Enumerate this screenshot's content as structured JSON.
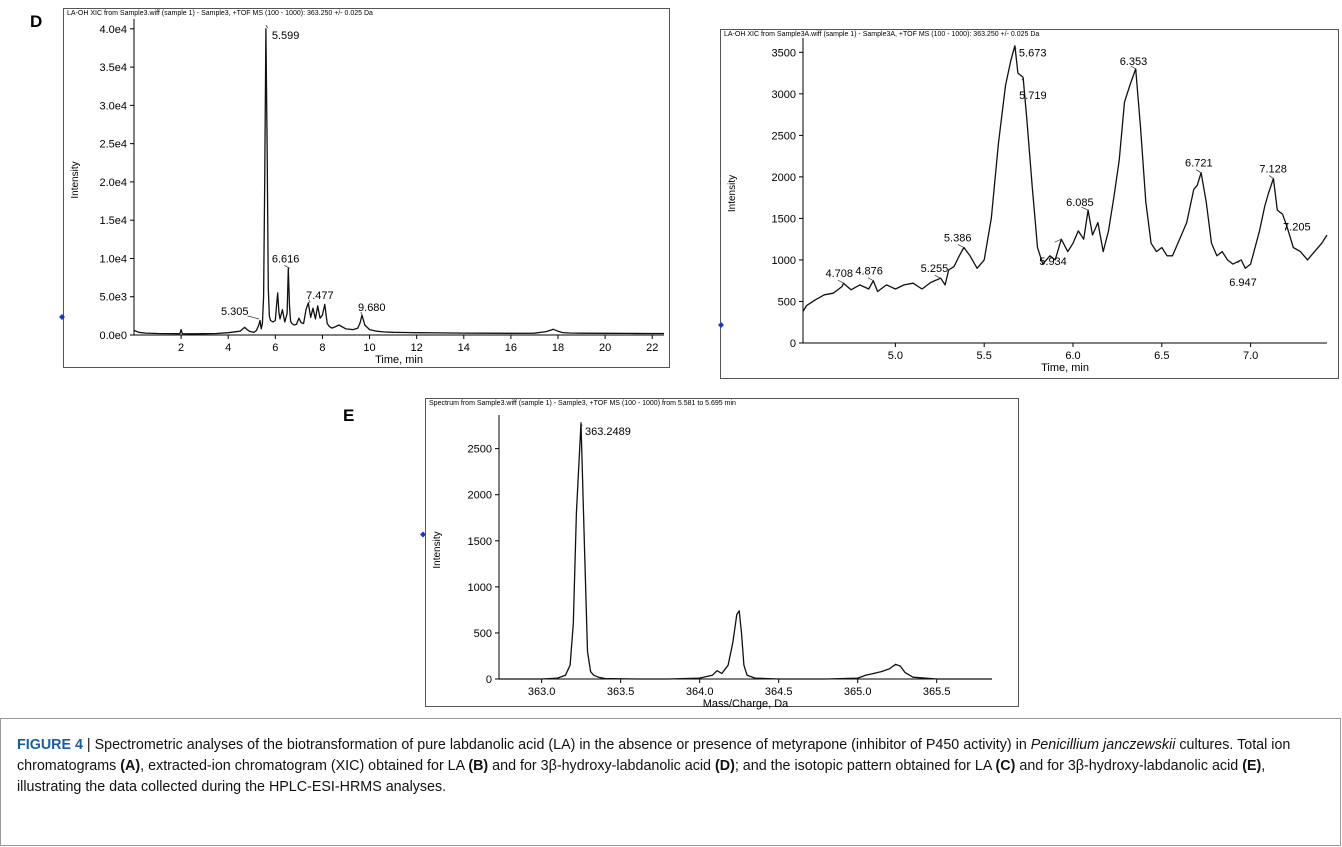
{
  "panel_labels": {
    "D": "D",
    "E": "E"
  },
  "chart_data": [
    {
      "id": "D-left",
      "type": "line",
      "header": "LA-OH XIC from Sample3.wiff (sample 1) - Sample3, +TOF MS (100 - 1000): 363.250 +/- 0.025 Da",
      "xlabel": "Time, min",
      "ylabel": "Intensity",
      "xlim": [
        0,
        22.5
      ],
      "ylim": [
        0,
        40500
      ],
      "xticks": [
        2,
        4,
        6,
        8,
        10,
        12,
        14,
        16,
        18,
        20,
        22
      ],
      "xtick_labels": [
        "2",
        "4",
        "6",
        "8",
        "10",
        "12",
        "14",
        "16",
        "18",
        "20",
        "22"
      ],
      "yticks": [
        0,
        5000,
        10000,
        15000,
        20000,
        25000,
        30000,
        35000,
        40000
      ],
      "ytick_labels": [
        "0.0e0",
        "5.0e3",
        "1.0e4",
        "1.5e4",
        "2.0e4",
        "2.5e4",
        "3.0e4",
        "3.5e4",
        "4.0e4"
      ],
      "annotations": [
        {
          "label": "5.599",
          "x": 5.599,
          "y": 40500
        },
        {
          "label": "6.616",
          "x": 6.616,
          "y": 8700
        },
        {
          "label": "5.305",
          "x": 5.305,
          "y": 2100
        },
        {
          "label": "7.477",
          "x": 7.477,
          "y": 4200
        },
        {
          "label": "9.680",
          "x": 9.68,
          "y": 2600
        }
      ],
      "series": [
        {
          "x": [
            0,
            0.2,
            0.5,
            1,
            1.5,
            1.95,
            2.0,
            2.05,
            2.5,
            3,
            3.5,
            4,
            4.5,
            4.7,
            4.8,
            4.9,
            5.0,
            5.1,
            5.2,
            5.3,
            5.35,
            5.4,
            5.45,
            5.5,
            5.55,
            5.6,
            5.65,
            5.7,
            5.75,
            5.8,
            5.9,
            6.0,
            6.05,
            6.1,
            6.15,
            6.2,
            6.3,
            6.4,
            6.5,
            6.55,
            6.6,
            6.65,
            6.7,
            6.8,
            6.9,
            7.0,
            7.1,
            7.2,
            7.3,
            7.4,
            7.5,
            7.6,
            7.7,
            7.8,
            7.9,
            8.0,
            8.1,
            8.2,
            8.3,
            8.4,
            8.5,
            8.7,
            9.0,
            9.3,
            9.5,
            9.6,
            9.68,
            9.8,
            10.0,
            10.3,
            10.6,
            11,
            11.5,
            12,
            13,
            14,
            15,
            16,
            17,
            17.5,
            17.8,
            18,
            18.2,
            18.5,
            19,
            20,
            21,
            22,
            22.5
          ],
          "y": [
            600,
            350,
            250,
            200,
            180,
            170,
            700,
            170,
            160,
            170,
            200,
            300,
            500,
            1000,
            700,
            500,
            400,
            350,
            600,
            1300,
            1900,
            800,
            1500,
            5000,
            20000,
            40000,
            25000,
            6000,
            2400,
            1900,
            1700,
            1900,
            3800,
            5500,
            3000,
            2100,
            3300,
            1700,
            2800,
            8700,
            3800,
            1800,
            1500,
            1300,
            1400,
            2200,
            1600,
            1500,
            3300,
            4200,
            2300,
            3500,
            2100,
            3800,
            2200,
            2600,
            4000,
            1500,
            1100,
            900,
            1000,
            1300,
            800,
            700,
            900,
            1600,
            2600,
            1300,
            700,
            500,
            400,
            350,
            330,
            300,
            270,
            250,
            230,
            220,
            230,
            450,
            750,
            500,
            320,
            260,
            230,
            220,
            210,
            200,
            200
          ]
        }
      ]
    },
    {
      "id": "D-right",
      "type": "line",
      "header": "LA-OH XIC from Sample3A.wiff (sample 1) - Sample3A, +TOF MS (100 - 1000): 363.250 +/- 0.025 Da",
      "xlabel": "Time, min",
      "ylabel": "Intensity",
      "xlim": [
        4.48,
        7.43
      ],
      "ylim": [
        0,
        3600
      ],
      "xticks": [
        5.0,
        5.5,
        6.0,
        6.5,
        7.0
      ],
      "xtick_labels": [
        "5.0",
        "5.5",
        "6.0",
        "6.5",
        "7.0"
      ],
      "yticks": [
        0,
        500,
        1000,
        1500,
        2000,
        2500,
        3000,
        3500
      ],
      "ytick_labels": [
        "0",
        "500",
        "1000",
        "1500",
        "2000",
        "2500",
        "3000",
        "3500"
      ],
      "annotations": [
        {
          "label": "5.673",
          "x": 5.673,
          "y": 3580
        },
        {
          "label": "5.719",
          "x": 5.719,
          "y": 3200
        },
        {
          "label": "6.353",
          "x": 6.353,
          "y": 3300
        },
        {
          "label": "4.708",
          "x": 4.708,
          "y": 720
        },
        {
          "label": "4.876",
          "x": 4.876,
          "y": 750
        },
        {
          "label": "5.255",
          "x": 5.255,
          "y": 780
        },
        {
          "label": "5.386",
          "x": 5.386,
          "y": 1150
        },
        {
          "label": "5.934",
          "x": 5.934,
          "y": 1250
        },
        {
          "label": "6.085",
          "x": 6.085,
          "y": 1600
        },
        {
          "label": "6.721",
          "x": 6.721,
          "y": 2050
        },
        {
          "label": "6.947",
          "x": 6.947,
          "y": 1000
        },
        {
          "label": "7.128",
          "x": 7.128,
          "y": 1980
        },
        {
          "label": "7.205",
          "x": 7.205,
          "y": 1400
        }
      ],
      "series": [
        {
          "x": [
            4.48,
            4.5,
            4.55,
            4.6,
            4.65,
            4.7,
            4.708,
            4.75,
            4.8,
            4.85,
            4.876,
            4.9,
            4.95,
            5.0,
            5.05,
            5.1,
            5.15,
            5.2,
            5.255,
            5.28,
            5.3,
            5.33,
            5.36,
            5.386,
            5.42,
            5.46,
            5.5,
            5.54,
            5.58,
            5.62,
            5.65,
            5.673,
            5.69,
            5.719,
            5.74,
            5.77,
            5.8,
            5.83,
            5.87,
            5.9,
            5.934,
            5.97,
            6.0,
            6.03,
            6.06,
            6.085,
            6.11,
            6.14,
            6.17,
            6.2,
            6.23,
            6.26,
            6.29,
            6.32,
            6.353,
            6.38,
            6.41,
            6.44,
            6.47,
            6.5,
            6.53,
            6.56,
            6.6,
            6.64,
            6.68,
            6.7,
            6.721,
            6.75,
            6.78,
            6.81,
            6.84,
            6.87,
            6.9,
            6.947,
            6.97,
            7.0,
            7.05,
            7.08,
            7.1,
            7.128,
            7.15,
            7.18,
            7.205,
            7.24,
            7.28,
            7.32,
            7.36,
            7.4,
            7.43
          ],
          "y": [
            380,
            450,
            520,
            580,
            600,
            680,
            720,
            640,
            700,
            650,
            750,
            620,
            700,
            650,
            700,
            720,
            650,
            730,
            780,
            700,
            880,
            920,
            1050,
            1150,
            1050,
            900,
            1000,
            1500,
            2400,
            3100,
            3400,
            3580,
            3250,
            3200,
            2700,
            1900,
            1150,
            950,
            1050,
            1000,
            1250,
            1100,
            1200,
            1350,
            1250,
            1600,
            1300,
            1450,
            1100,
            1350,
            1750,
            2200,
            2900,
            3100,
            3300,
            2600,
            1700,
            1200,
            1100,
            1150,
            1050,
            1050,
            1250,
            1450,
            1850,
            1900,
            2050,
            1700,
            1200,
            1050,
            1100,
            1000,
            950,
            1000,
            900,
            950,
            1350,
            1650,
            1800,
            1980,
            1600,
            1550,
            1400,
            1150,
            1100,
            1000,
            1100,
            1200,
            1300
          ]
        }
      ]
    },
    {
      "id": "E",
      "type": "line",
      "header": "Spectrum from Sample3.wiff (sample 1) - Sample3, +TOF MS (100 - 1000) from 5.581 to 5.695 min",
      "xlabel": "Mass/Charge, Da",
      "ylabel": "Intensity",
      "xlim": [
        362.73,
        365.85
      ],
      "ylim": [
        0,
        2800
      ],
      "xticks": [
        363.0,
        363.5,
        364.0,
        364.5,
        365.0,
        365.5
      ],
      "xtick_labels": [
        "363.0",
        "363.5",
        "364.0",
        "364.5",
        "365.0",
        "365.5"
      ],
      "yticks": [
        0,
        500,
        1000,
        1500,
        2000,
        2500
      ],
      "ytick_labels": [
        "0",
        "500",
        "1000",
        "1500",
        "2000",
        "2500"
      ],
      "annotations": [
        {
          "label": "363.2489",
          "x": 363.2489,
          "y": 2780
        }
      ],
      "series": [
        {
          "x": [
            362.73,
            363.0,
            363.1,
            363.15,
            363.18,
            363.2,
            363.22,
            363.2489,
            363.27,
            363.29,
            363.31,
            363.33,
            363.36,
            363.4,
            363.6,
            363.8,
            364.0,
            364.08,
            364.11,
            364.14,
            364.18,
            364.21,
            364.235,
            364.25,
            364.265,
            364.28,
            364.3,
            364.35,
            364.5,
            364.8,
            365.0,
            365.05,
            365.1,
            365.15,
            365.2,
            365.24,
            365.27,
            365.3,
            365.35,
            365.5,
            365.85
          ],
          "y": [
            0,
            0,
            10,
            40,
            150,
            600,
            1800,
            2780,
            1500,
            300,
            80,
            40,
            20,
            5,
            0,
            0,
            10,
            40,
            90,
            60,
            150,
            400,
            700,
            740,
            500,
            150,
            40,
            10,
            0,
            0,
            10,
            40,
            60,
            80,
            110,
            160,
            140,
            70,
            20,
            0,
            0
          ]
        }
      ]
    }
  ],
  "caption": {
    "label": "FIGURE 4",
    "sep": " | ",
    "t1": "Spectrometric analyses of the biotransformation of pure labdanolic acid (LA) in the absence or presence of metyrapone (inhibitor of P450 activity) in ",
    "species": "Penicillium janczewskii",
    "t2": " cultures. Total ion chromatograms ",
    "refA": "(A)",
    "t3": ", extracted-ion chromatogram (XIC) obtained for LA ",
    "refB": "(B)",
    "t4": " and for 3β-hydroxy-labdanolic acid ",
    "refD": "(D)",
    "t5": "; and the isotopic pattern obtained for LA ",
    "refC": "(C)",
    "t6": " and for 3β-hydroxy-labdanolic acid ",
    "refE": "(E)",
    "t7": ", illustrating the data collected during the HPLC-ESI-HRMS analyses."
  },
  "colors": {
    "line": "#111111",
    "marker": "#1f35c8",
    "caption_label": "#1d5c9c",
    "border": "#555555"
  }
}
